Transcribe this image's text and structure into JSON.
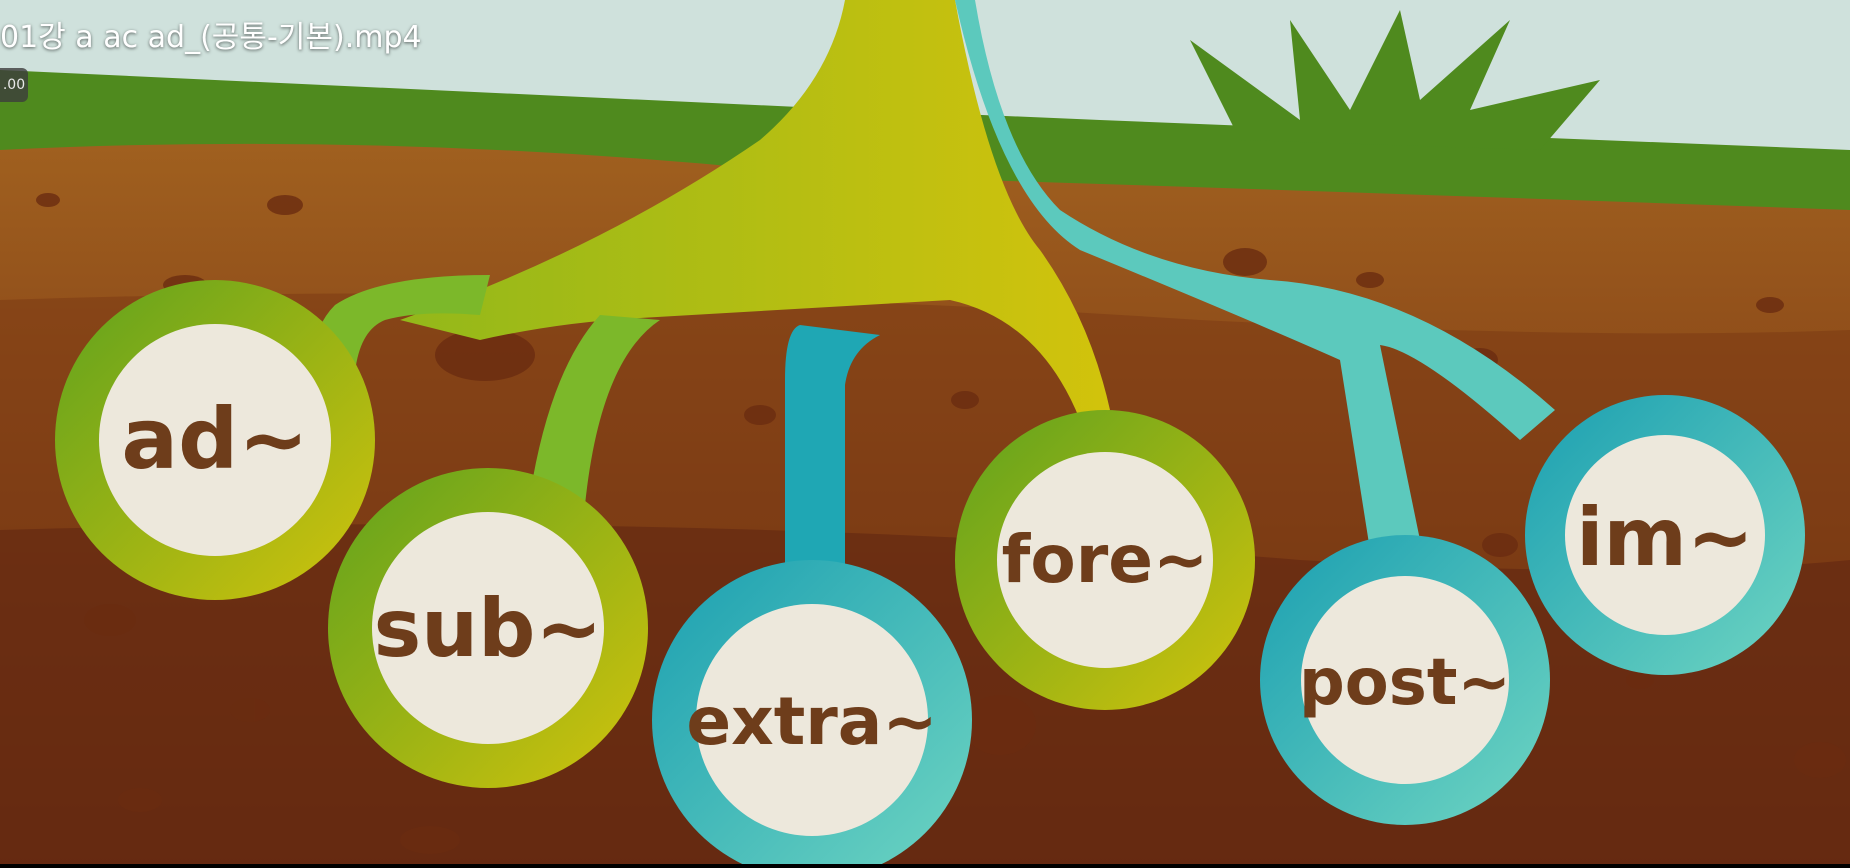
{
  "player": {
    "video_title": "01강 a ac ad_(공통-기본).mp4",
    "speed_label": ".00"
  },
  "scene": {
    "prefixes": [
      {
        "label": "ad~",
        "ring": "green"
      },
      {
        "label": "sub~",
        "ring": "green"
      },
      {
        "label": "extra~",
        "ring": "teal"
      },
      {
        "label": "fore~",
        "ring": "green"
      },
      {
        "label": "post~",
        "ring": "teal"
      },
      {
        "label": "im~",
        "ring": "teal"
      }
    ],
    "colors": {
      "sky": "#cfe1dc",
      "grass": "#4f8a1e",
      "topsoil": "#9a5a22",
      "deep_soil": "#6e2f12",
      "root_green": "#7cb82a",
      "root_yellow": "#c6c211",
      "root_teal": "#5cc9bd",
      "disc": "#ede8dc",
      "text_brown": "#6e3d1b"
    }
  }
}
